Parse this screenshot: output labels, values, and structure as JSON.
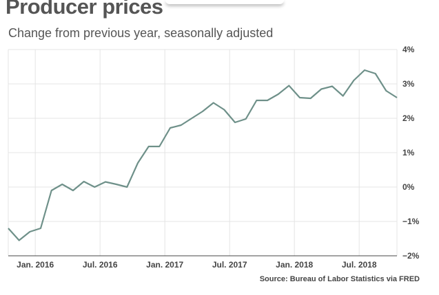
{
  "header": {
    "title": "Producer prices",
    "subtitle": "Change from previous year, seasonally adjusted"
  },
  "footer": {
    "source": "Source: Bureau of Labor Statistics via FRED"
  },
  "colors": {
    "line": "#6e9089",
    "grid": "#e4e4e4",
    "axis": "#444444"
  },
  "chart_data": {
    "type": "line",
    "title": "Producer prices",
    "subtitle": "Change from previous year, seasonally adjusted",
    "xlabel": "",
    "ylabel": "",
    "ylim": [
      -2,
      4
    ],
    "y_ticks": [
      4,
      3,
      2,
      1,
      0,
      -1,
      -2
    ],
    "y_tick_labels": [
      "4%",
      "3%",
      "2%",
      "1%",
      "0%",
      "−1%",
      "−2%"
    ],
    "x_ticks": [
      {
        "label": "Jan. 2016",
        "index": 2.5
      },
      {
        "label": "Jul. 2016",
        "index": 8.5
      },
      {
        "label": "Jan. 2017",
        "index": 14.5
      },
      {
        "label": "Jul. 2017",
        "index": 20.5
      },
      {
        "label": "Jan. 2018",
        "index": 26.5
      },
      {
        "label": "Jul. 2018",
        "index": 32.5
      }
    ],
    "grid": true,
    "series": [
      {
        "name": "Producer prices, % change from previous year",
        "values": [
          -1.2,
          -1.55,
          -1.3,
          -1.2,
          -0.1,
          0.08,
          -0.1,
          0.16,
          0.0,
          0.15,
          0.08,
          0.0,
          0.7,
          1.18,
          1.18,
          1.72,
          1.8,
          2.0,
          2.2,
          2.45,
          2.25,
          1.88,
          1.98,
          2.52,
          2.52,
          2.7,
          2.95,
          2.6,
          2.58,
          2.85,
          2.93,
          2.65,
          3.1,
          3.4,
          3.3,
          2.8,
          2.6
        ]
      }
    ]
  }
}
